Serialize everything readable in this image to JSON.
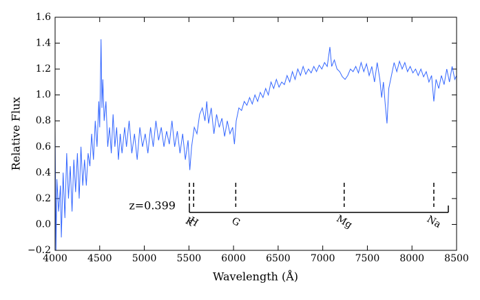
{
  "chart_data": {
    "type": "line",
    "xlabel": "Wavelength (Å)",
    "ylabel": "Relative Flux",
    "annotation": "z=0.399",
    "lines": [
      {
        "label": "K",
        "x": 5505
      },
      {
        "label": "H",
        "x": 5553
      },
      {
        "label": "G",
        "x": 6025
      },
      {
        "label": "Mg",
        "x": 7240
      },
      {
        "label": "Na",
        "x": 8245
      }
    ],
    "x": [
      4000,
      4010,
      4020,
      4040,
      4060,
      4070,
      4090,
      4110,
      4130,
      4150,
      4170,
      4190,
      4210,
      4230,
      4250,
      4270,
      4290,
      4310,
      4330,
      4350,
      4370,
      4390,
      4410,
      4430,
      4450,
      4470,
      4490,
      4500,
      4515,
      4525,
      4535,
      4550,
      4570,
      4590,
      4610,
      4630,
      4650,
      4670,
      4690,
      4710,
      4730,
      4750,
      4780,
      4800,
      4830,
      4860,
      4890,
      4920,
      4950,
      4980,
      5010,
      5040,
      5070,
      5100,
      5130,
      5160,
      5190,
      5220,
      5250,
      5280,
      5310,
      5340,
      5370,
      5400,
      5430,
      5460,
      5490,
      5510,
      5530,
      5560,
      5590,
      5620,
      5650,
      5680,
      5700,
      5720,
      5750,
      5780,
      5810,
      5840,
      5870,
      5900,
      5930,
      5960,
      5990,
      6010,
      6030,
      6060,
      6090,
      6120,
      6150,
      6180,
      6210,
      6240,
      6270,
      6300,
      6330,
      6360,
      6390,
      6420,
      6450,
      6480,
      6510,
      6540,
      6570,
      6600,
      6630,
      6660,
      6690,
      6720,
      6750,
      6780,
      6810,
      6840,
      6870,
      6900,
      6930,
      6960,
      6990,
      7020,
      7050,
      7080,
      7100,
      7130,
      7160,
      7190,
      7220,
      7250,
      7280,
      7310,
      7340,
      7370,
      7400,
      7430,
      7460,
      7490,
      7520,
      7550,
      7580,
      7610,
      7640,
      7660,
      7680,
      7700,
      7720,
      7740,
      7770,
      7800,
      7830,
      7860,
      7890,
      7920,
      7950,
      7980,
      8010,
      8040,
      8070,
      8100,
      8130,
      8160,
      8190,
      8220,
      8245,
      8270,
      8300,
      8330,
      8360,
      8390,
      8420,
      8450,
      8480,
      8500
    ],
    "series": [
      {
        "color": "#3366ff",
        "values": [
          0.72,
          -0.2,
          0.35,
          0.1,
          0.3,
          -0.1,
          0.4,
          0.05,
          0.55,
          0.2,
          0.45,
          0.1,
          0.5,
          0.25,
          0.55,
          0.2,
          0.6,
          0.3,
          0.5,
          0.3,
          0.55,
          0.45,
          0.7,
          0.5,
          0.8,
          0.6,
          0.95,
          0.75,
          1.43,
          0.9,
          1.12,
          0.8,
          0.95,
          0.6,
          0.75,
          0.55,
          0.85,
          0.6,
          0.75,
          0.5,
          0.7,
          0.55,
          0.75,
          0.6,
          0.8,
          0.55,
          0.7,
          0.5,
          0.75,
          0.6,
          0.7,
          0.55,
          0.75,
          0.6,
          0.8,
          0.65,
          0.75,
          0.6,
          0.72,
          0.62,
          0.8,
          0.6,
          0.72,
          0.55,
          0.7,
          0.5,
          0.65,
          0.42,
          0.6,
          0.75,
          0.7,
          0.85,
          0.9,
          0.8,
          0.95,
          0.78,
          0.9,
          0.7,
          0.85,
          0.75,
          0.82,
          0.68,
          0.8,
          0.7,
          0.75,
          0.62,
          0.8,
          0.9,
          0.88,
          0.95,
          0.92,
          0.98,
          0.93,
          1.0,
          0.95,
          1.02,
          0.98,
          1.05,
          1.0,
          1.1,
          1.05,
          1.12,
          1.06,
          1.1,
          1.08,
          1.15,
          1.1,
          1.18,
          1.12,
          1.2,
          1.15,
          1.22,
          1.16,
          1.2,
          1.17,
          1.22,
          1.18,
          1.23,
          1.2,
          1.25,
          1.22,
          1.37,
          1.22,
          1.27,
          1.2,
          1.18,
          1.14,
          1.12,
          1.15,
          1.2,
          1.18,
          1.22,
          1.17,
          1.25,
          1.18,
          1.24,
          1.15,
          1.22,
          1.1,
          1.25,
          1.12,
          0.98,
          1.1,
          0.93,
          0.78,
          1.05,
          1.15,
          1.25,
          1.18,
          1.26,
          1.2,
          1.25,
          1.18,
          1.22,
          1.17,
          1.2,
          1.15,
          1.2,
          1.14,
          1.18,
          1.1,
          1.15,
          0.95,
          1.12,
          1.05,
          1.15,
          1.08,
          1.2,
          1.1,
          1.22,
          1.12,
          1.15
        ]
      }
    ],
    "xlim": [
      4000,
      8500
    ],
    "xticks": [
      4000,
      4500,
      5000,
      5500,
      6000,
      6500,
      7000,
      7500,
      8000,
      8500
    ],
    "ylim": [
      -0.2,
      1.6
    ],
    "yticks": [
      {
        "value": -0.2,
        "label": "−0.2"
      },
      {
        "value": 0,
        "label": "0.0"
      },
      0.2,
      0.4,
      0.6,
      0.8,
      {
        "value": 1,
        "label": "1.0"
      },
      1.2,
      1.4,
      1.6
    ],
    "grid": false
  }
}
